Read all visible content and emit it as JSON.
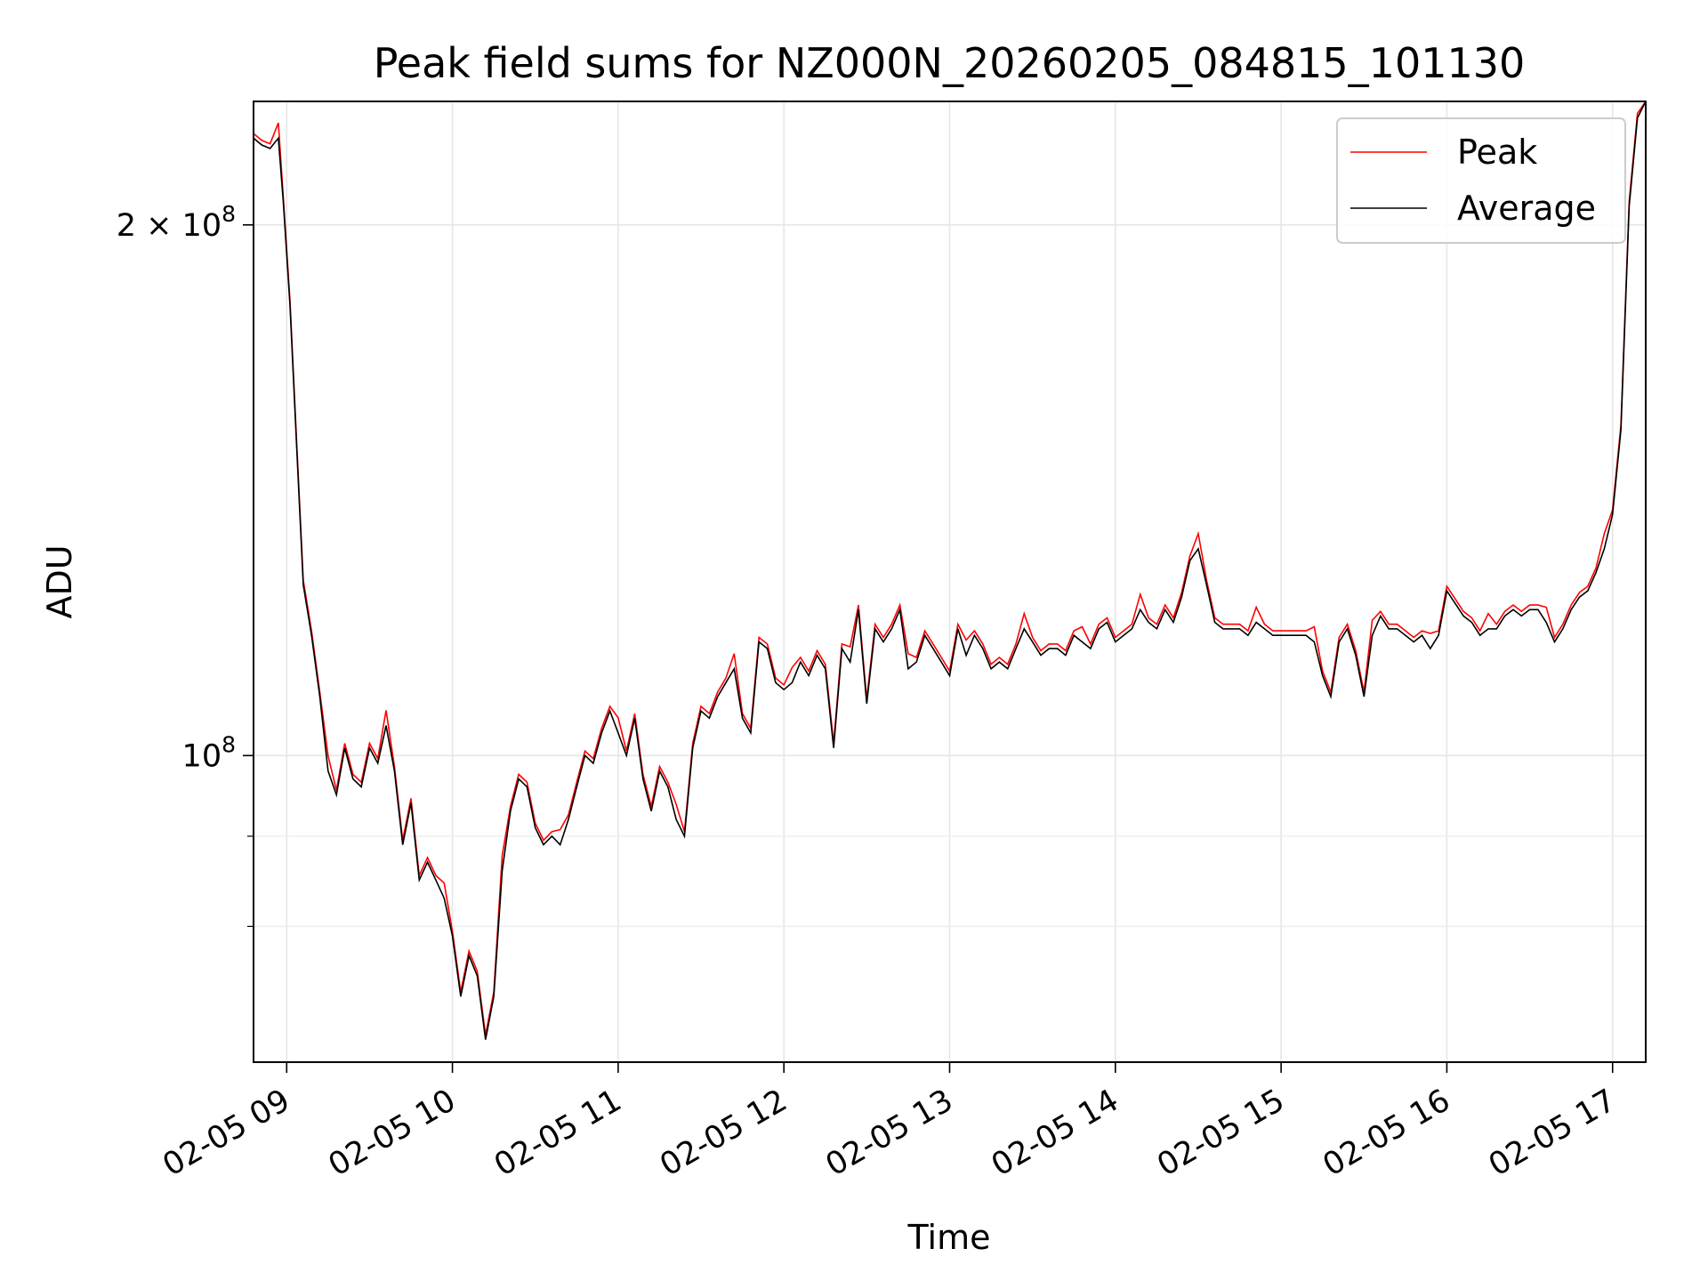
{
  "chart_data": {
    "type": "line",
    "title": "Peak field sums for NZ000N_20260205_084815_101130",
    "xlabel": "Time",
    "ylabel": "ADU",
    "y_scale": "log",
    "xlim_hours": [
      8.8,
      17.2
    ],
    "ylim": [
      67000000,
      235000000
    ],
    "x_tick_labels": [
      "02-05 09",
      "02-05 10",
      "02-05 11",
      "02-05 12",
      "02-05 13",
      "02-05 14",
      "02-05 15",
      "02-05 16",
      "02-05 17"
    ],
    "x_tick_hours": [
      9,
      10,
      11,
      12,
      13,
      14,
      15,
      16,
      17
    ],
    "y_major_ticks": [
      {
        "value": 100000000,
        "base": "10",
        "exp": "8",
        "mantissa": ""
      },
      {
        "value": 200000000,
        "base": "10",
        "exp": "8",
        "mantissa": "2 × "
      }
    ],
    "y_minor_ticks": [
      80000000,
      90000000
    ],
    "grid": true,
    "legend_position": "upper right",
    "series": [
      {
        "name": "Peak",
        "color": "#ff0000"
      },
      {
        "name": "Average",
        "color": "#000000"
      }
    ],
    "average_points": [
      [
        8.8,
        224
      ],
      [
        8.85,
        222
      ],
      [
        8.9,
        221
      ],
      [
        8.95,
        224
      ],
      [
        8.98,
        206
      ],
      [
        9.02,
        180
      ],
      [
        9.06,
        150
      ],
      [
        9.1,
        125
      ],
      [
        9.15,
        117
      ],
      [
        9.2,
        108
      ],
      [
        9.25,
        98
      ],
      [
        9.3,
        95
      ],
      [
        9.35,
        101
      ],
      [
        9.4,
        97
      ],
      [
        9.45,
        96
      ],
      [
        9.5,
        101
      ],
      [
        9.55,
        99
      ],
      [
        9.6,
        104
      ],
      [
        9.65,
        98
      ],
      [
        9.7,
        89
      ],
      [
        9.75,
        94
      ],
      [
        9.8,
        85
      ],
      [
        9.85,
        87
      ],
      [
        9.9,
        85
      ],
      [
        9.95,
        83
      ],
      [
        10.0,
        79
      ],
      [
        10.05,
        73
      ],
      [
        10.1,
        77
      ],
      [
        10.15,
        75
      ],
      [
        10.2,
        69
      ],
      [
        10.25,
        73
      ],
      [
        10.3,
        86
      ],
      [
        10.35,
        93
      ],
      [
        10.4,
        97
      ],
      [
        10.45,
        96
      ],
      [
        10.5,
        91
      ],
      [
        10.55,
        89
      ],
      [
        10.6,
        90
      ],
      [
        10.65,
        89
      ],
      [
        10.7,
        92
      ],
      [
        10.75,
        96
      ],
      [
        10.8,
        100
      ],
      [
        10.85,
        99
      ],
      [
        10.9,
        103
      ],
      [
        10.95,
        106
      ],
      [
        11.0,
        103
      ],
      [
        11.05,
        100
      ],
      [
        11.1,
        105
      ],
      [
        11.15,
        97
      ],
      [
        11.2,
        93
      ],
      [
        11.25,
        98
      ],
      [
        11.3,
        96
      ],
      [
        11.35,
        92
      ],
      [
        11.4,
        90
      ],
      [
        11.45,
        101
      ],
      [
        11.5,
        106
      ],
      [
        11.55,
        105
      ],
      [
        11.6,
        108
      ],
      [
        11.65,
        110
      ],
      [
        11.7,
        112
      ],
      [
        11.75,
        105
      ],
      [
        11.8,
        103
      ],
      [
        11.85,
        116
      ],
      [
        11.9,
        115
      ],
      [
        11.95,
        110
      ],
      [
        12.0,
        109
      ],
      [
        12.05,
        110
      ],
      [
        12.1,
        113
      ],
      [
        12.15,
        111
      ],
      [
        12.2,
        114
      ],
      [
        12.25,
        112
      ],
      [
        12.3,
        101
      ],
      [
        12.35,
        115
      ],
      [
        12.4,
        113
      ],
      [
        12.45,
        121
      ],
      [
        12.5,
        107
      ],
      [
        12.55,
        118
      ],
      [
        12.6,
        116
      ],
      [
        12.65,
        118
      ],
      [
        12.7,
        121
      ],
      [
        12.75,
        112
      ],
      [
        12.8,
        113
      ],
      [
        12.85,
        117
      ],
      [
        12.9,
        115
      ],
      [
        12.95,
        113
      ],
      [
        13.0,
        111
      ],
      [
        13.05,
        118
      ],
      [
        13.1,
        114
      ],
      [
        13.15,
        117
      ],
      [
        13.2,
        115
      ],
      [
        13.25,
        112
      ],
      [
        13.3,
        113
      ],
      [
        13.35,
        112
      ],
      [
        13.4,
        115
      ],
      [
        13.45,
        118
      ],
      [
        13.5,
        116
      ],
      [
        13.55,
        114
      ],
      [
        13.6,
        115
      ],
      [
        13.65,
        115
      ],
      [
        13.7,
        114
      ],
      [
        13.75,
        117
      ],
      [
        13.8,
        116
      ],
      [
        13.85,
        115
      ],
      [
        13.9,
        118
      ],
      [
        13.95,
        119
      ],
      [
        14.0,
        116
      ],
      [
        14.05,
        117
      ],
      [
        14.1,
        118
      ],
      [
        14.15,
        121
      ],
      [
        14.2,
        119
      ],
      [
        14.25,
        118
      ],
      [
        14.3,
        121
      ],
      [
        14.35,
        119
      ],
      [
        14.4,
        123
      ],
      [
        14.45,
        129
      ],
      [
        14.5,
        131
      ],
      [
        14.55,
        125
      ],
      [
        14.6,
        119
      ],
      [
        14.65,
        118
      ],
      [
        14.7,
        118
      ],
      [
        14.75,
        118
      ],
      [
        14.8,
        117
      ],
      [
        14.85,
        119
      ],
      [
        14.9,
        118
      ],
      [
        14.95,
        117
      ],
      [
        15.0,
        117
      ],
      [
        15.05,
        117
      ],
      [
        15.1,
        117
      ],
      [
        15.15,
        117
      ],
      [
        15.2,
        116
      ],
      [
        15.25,
        111
      ],
      [
        15.3,
        108
      ],
      [
        15.35,
        116
      ],
      [
        15.4,
        118
      ],
      [
        15.45,
        114
      ],
      [
        15.5,
        108
      ],
      [
        15.55,
        117
      ],
      [
        15.6,
        120
      ],
      [
        15.65,
        118
      ],
      [
        15.7,
        118
      ],
      [
        15.75,
        117
      ],
      [
        15.8,
        116
      ],
      [
        15.85,
        117
      ],
      [
        15.9,
        115
      ],
      [
        15.95,
        117
      ],
      [
        16.0,
        124
      ],
      [
        16.05,
        122
      ],
      [
        16.1,
        120
      ],
      [
        16.15,
        119
      ],
      [
        16.2,
        117
      ],
      [
        16.25,
        118
      ],
      [
        16.3,
        118
      ],
      [
        16.35,
        120
      ],
      [
        16.4,
        121
      ],
      [
        16.45,
        120
      ],
      [
        16.5,
        121
      ],
      [
        16.55,
        121
      ],
      [
        16.6,
        119
      ],
      [
        16.65,
        116
      ],
      [
        16.7,
        118
      ],
      [
        16.75,
        121
      ],
      [
        16.8,
        123
      ],
      [
        16.85,
        124
      ],
      [
        16.9,
        127
      ],
      [
        16.95,
        131
      ],
      [
        17.0,
        137
      ],
      [
        17.05,
        153
      ],
      [
        17.1,
        205
      ],
      [
        17.15,
        230
      ],
      [
        17.2,
        235
      ]
    ]
  }
}
